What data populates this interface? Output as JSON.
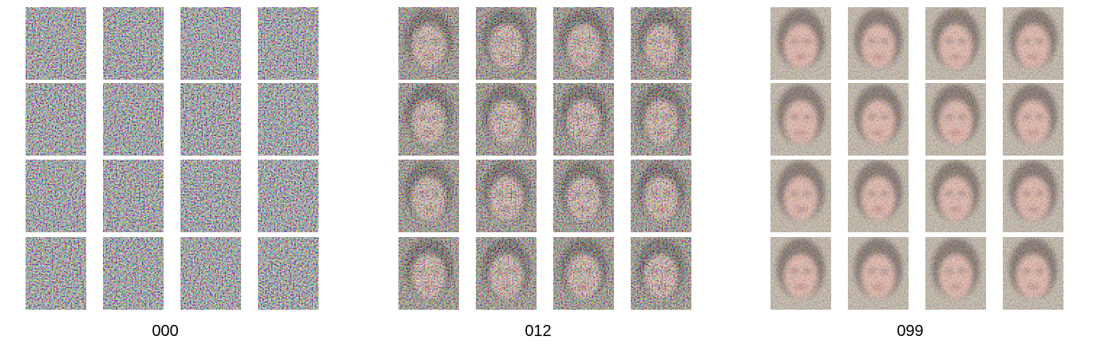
{
  "panels": [
    {
      "label": "000"
    },
    {
      "label": "012"
    },
    {
      "label": "099"
    }
  ]
}
